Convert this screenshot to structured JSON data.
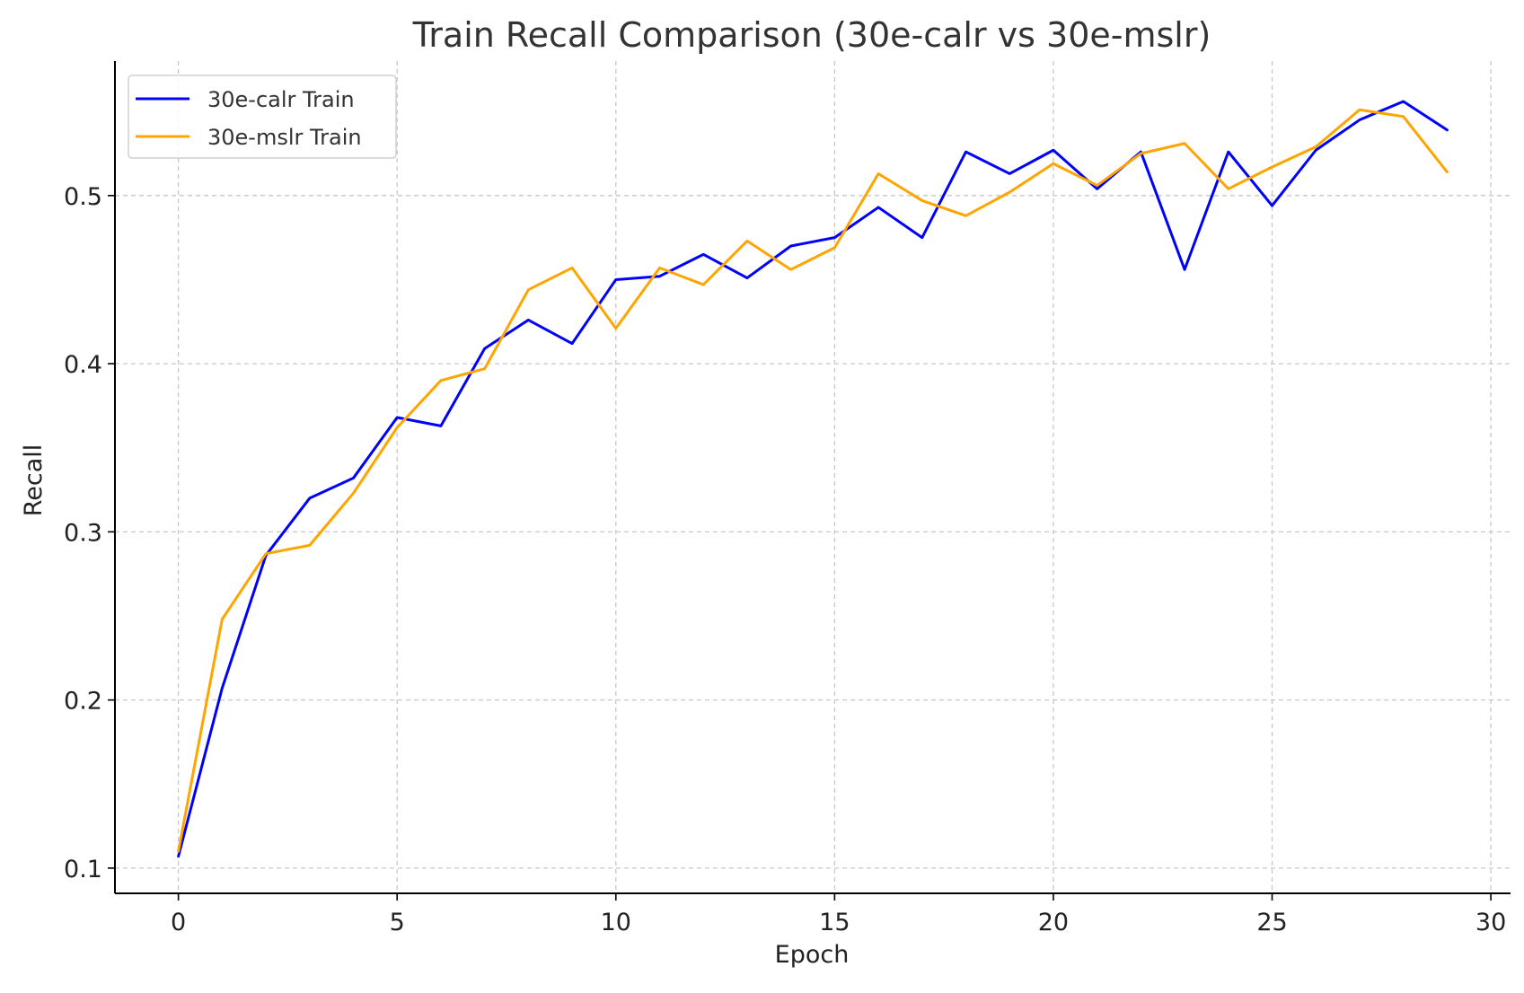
{
  "chart_data": {
    "type": "line",
    "title": "Train Recall Comparison (30e-calr vs 30e-mslr)",
    "xlabel": "Epoch",
    "ylabel": "Recall",
    "xlim": [
      -1.45,
      30.45
    ],
    "ylim": [
      0.085,
      0.58
    ],
    "xticks": [
      0,
      5,
      10,
      15,
      20,
      25,
      30
    ],
    "xtick_labels": [
      "0",
      "5",
      "10",
      "15",
      "20",
      "25",
      "30"
    ],
    "yticks": [
      0.1,
      0.2,
      0.3,
      0.4,
      0.5
    ],
    "ytick_labels": [
      "0.1",
      "0.2",
      "0.3",
      "0.4",
      "0.5"
    ],
    "grid": true,
    "legend_position": "upper-left",
    "x": [
      0,
      1,
      2,
      3,
      4,
      5,
      6,
      7,
      8,
      9,
      10,
      11,
      12,
      13,
      14,
      15,
      16,
      17,
      18,
      19,
      20,
      21,
      22,
      23,
      24,
      25,
      26,
      27,
      28,
      29
    ],
    "series": [
      {
        "name": "30e-calr Train",
        "color": "#0000ff",
        "values": [
          0.107,
          0.207,
          0.286,
          0.32,
          0.332,
          0.368,
          0.363,
          0.409,
          0.426,
          0.412,
          0.45,
          0.452,
          0.465,
          0.451,
          0.47,
          0.475,
          0.493,
          0.475,
          0.526,
          0.513,
          0.527,
          0.504,
          0.526,
          0.456,
          0.526,
          0.494,
          0.527,
          0.545,
          0.556,
          0.539
        ]
      },
      {
        "name": "30e-mslr Train",
        "color": "#ffa500",
        "values": [
          0.11,
          0.248,
          0.287,
          0.292,
          0.323,
          0.362,
          0.39,
          0.397,
          0.444,
          0.457,
          0.421,
          0.457,
          0.447,
          0.473,
          0.456,
          0.469,
          0.513,
          0.497,
          0.488,
          0.502,
          0.519,
          0.506,
          0.525,
          0.531,
          0.504,
          0.517,
          0.529,
          0.551,
          0.547,
          0.514
        ]
      }
    ]
  }
}
